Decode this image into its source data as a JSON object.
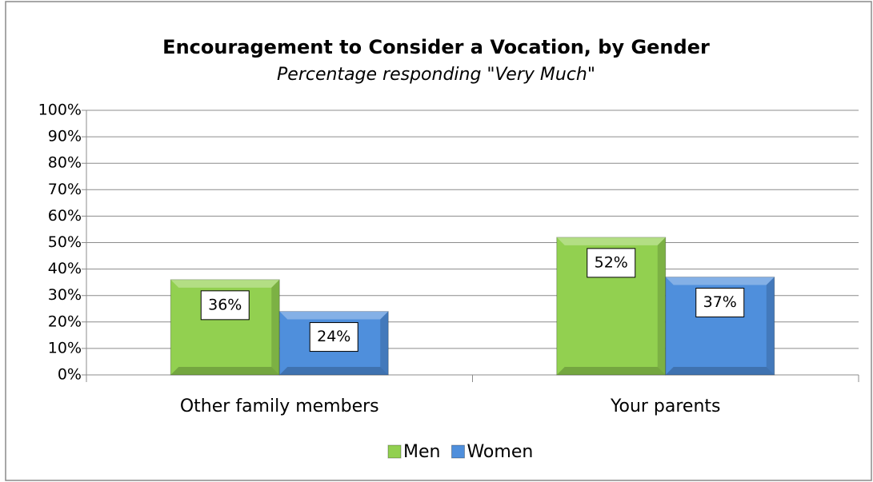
{
  "chart_data": {
    "type": "bar",
    "title": "Encouragement to Consider a Vocation, by Gender",
    "subtitle": "Percentage responding \"Very Much\"",
    "categories": [
      "Other family members",
      "Your parents"
    ],
    "series": [
      {
        "name": "Men",
        "color": "#92d050",
        "values": [
          36,
          52
        ],
        "value_labels": [
          "36%",
          "52%"
        ]
      },
      {
        "name": "Women",
        "color": "#4f8fdc",
        "values": [
          24,
          37
        ],
        "value_labels": [
          "24%",
          "37%"
        ]
      }
    ],
    "ylim": [
      0,
      100
    ],
    "yticks": [
      {
        "value": 0,
        "label": "0%"
      },
      {
        "value": 10,
        "label": "10%"
      },
      {
        "value": 20,
        "label": "20%"
      },
      {
        "value": 30,
        "label": "30%"
      },
      {
        "value": 40,
        "label": "40%"
      },
      {
        "value": 50,
        "label": "50%"
      },
      {
        "value": 60,
        "label": "60%"
      },
      {
        "value": 70,
        "label": "70%"
      },
      {
        "value": 80,
        "label": "80%"
      },
      {
        "value": 90,
        "label": "90%"
      },
      {
        "value": 100,
        "label": "100%"
      }
    ],
    "grid": true,
    "legend": "bottom"
  }
}
